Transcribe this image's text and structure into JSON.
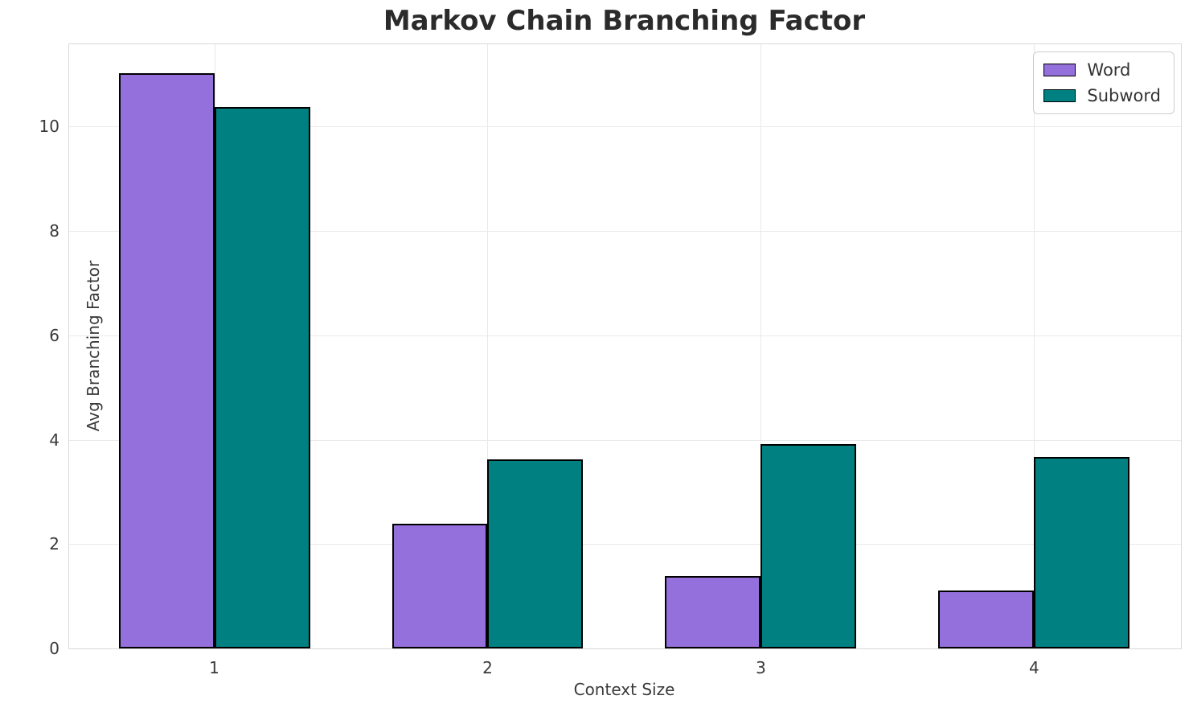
{
  "title": "Markov Chain Branching Factor",
  "chart_data": {
    "type": "bar",
    "title": "Markov Chain Branching Factor",
    "xlabel": "Context Size",
    "ylabel": "Avg Branching Factor",
    "categories": [
      "1",
      "2",
      "3",
      "4"
    ],
    "series": [
      {
        "name": "Word",
        "color": "#9370DB",
        "values": [
          11.03,
          2.39,
          1.39,
          1.11
        ]
      },
      {
        "name": "Subword",
        "color": "#008080",
        "values": [
          10.37,
          3.62,
          3.91,
          3.67
        ]
      }
    ],
    "ylim": [
      0,
      11.58
    ],
    "yticks": [
      0,
      2,
      4,
      6,
      8,
      10
    ],
    "xlim": [
      0.469,
      4.537
    ],
    "bar_width_data_units": 0.35,
    "bar_edge_color": "#000000",
    "grid": true,
    "gridline_color": "#e9e9e9",
    "legend_position": "upper right"
  }
}
